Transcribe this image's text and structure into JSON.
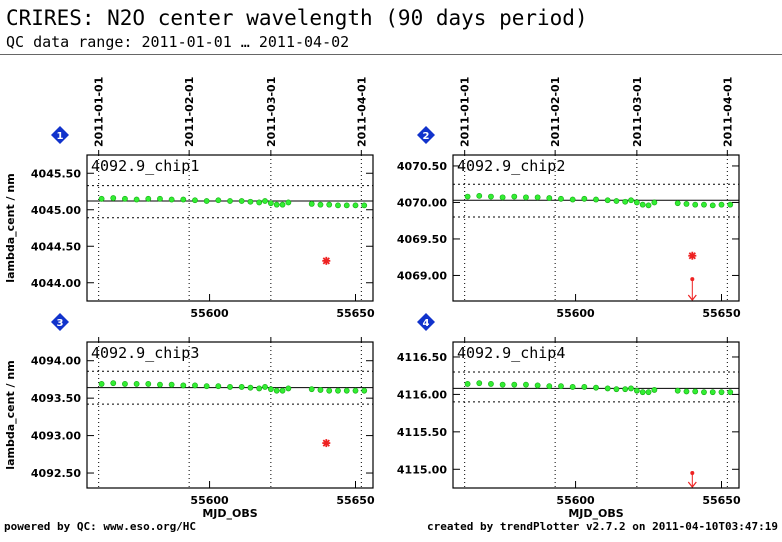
{
  "header": {
    "title": "CRIRES: N2O center wavelength (90 days period)",
    "subtitle": "QC data range: 2011-01-01 … 2011-04-02"
  },
  "footer": {
    "left": "powered by QC: www.eso.org/HC",
    "right": "created by trendPlotter v2.7.2 on 2011-04-10T03:47:19"
  },
  "chart_data": [
    {
      "type": "scatter",
      "badge": "1",
      "panel_label": "4092.9_chip1",
      "ylabel": "lambda_cent / nm",
      "xlabel": "",
      "xlim": [
        55558,
        55656
      ],
      "ylim": [
        4043.75,
        4045.75
      ],
      "yticks": [
        4044.0,
        4044.5,
        4045.0,
        4045.5
      ],
      "ytick_labels": [
        "4044.00",
        "4044.50",
        "4045.00",
        "4045.50"
      ],
      "xticks": [
        55600,
        55650
      ],
      "xtick_labels": [
        "55600",
        "55650"
      ],
      "date_ticks": [
        {
          "x": 55562,
          "label": "2011-01-01"
        },
        {
          "x": 55593,
          "label": "2011-02-01"
        },
        {
          "x": 55621,
          "label": "2011-03-01"
        },
        {
          "x": 55652,
          "label": "2011-04-01"
        }
      ],
      "mean": 4045.12,
      "limits": [
        4044.89,
        4045.33
      ],
      "series": [
        {
          "x": [
            55563,
            55567,
            55571,
            55575,
            55579,
            55583,
            55587,
            55591,
            55595,
            55599,
            55603,
            55607,
            55611,
            55614,
            55617,
            55619,
            55621,
            55623,
            55625,
            55627
          ],
          "y": [
            4045.15,
            4045.16,
            4045.15,
            4045.14,
            4045.15,
            4045.15,
            4045.14,
            4045.14,
            4045.13,
            4045.12,
            4045.13,
            4045.12,
            4045.12,
            4045.11,
            4045.1,
            4045.12,
            4045.09,
            4045.07,
            4045.07,
            4045.1
          ]
        },
        {
          "x": [
            55635,
            55638,
            55641,
            55644,
            55647,
            55650,
            55653
          ],
          "y": [
            4045.08,
            4045.07,
            4045.07,
            4045.06,
            4045.06,
            4045.06,
            4045.06
          ]
        }
      ],
      "outliers": [
        {
          "x": 55640,
          "y": 4044.3
        }
      ],
      "low_outliers": []
    },
    {
      "type": "scatter",
      "badge": "2",
      "panel_label": "4092.9_chip2",
      "ylabel": "",
      "xlabel": "",
      "xlim": [
        55558,
        55656
      ],
      "ylim": [
        4068.65,
        4070.65
      ],
      "yticks": [
        4069.0,
        4069.5,
        4070.0,
        4070.5
      ],
      "ytick_labels": [
        "4069.00",
        "4069.50",
        "4070.00",
        "4070.50"
      ],
      "xticks": [
        55600,
        55650
      ],
      "xtick_labels": [
        "55600",
        "55650"
      ],
      "date_ticks": [
        {
          "x": 55562,
          "label": "2011-01-01"
        },
        {
          "x": 55593,
          "label": "2011-02-01"
        },
        {
          "x": 55621,
          "label": "2011-03-01"
        },
        {
          "x": 55652,
          "label": "2011-04-01"
        }
      ],
      "mean": 4070.03,
      "limits": [
        4069.8,
        4070.25
      ],
      "series": [
        {
          "x": [
            55563,
            55567,
            55571,
            55575,
            55579,
            55583,
            55587,
            55591,
            55595,
            55599,
            55603,
            55607,
            55611,
            55614,
            55617,
            55619,
            55621,
            55623,
            55625,
            55627
          ],
          "y": [
            4070.08,
            4070.09,
            4070.08,
            4070.07,
            4070.08,
            4070.07,
            4070.07,
            4070.06,
            4070.05,
            4070.04,
            4070.05,
            4070.04,
            4070.03,
            4070.02,
            4070.01,
            4070.03,
            4070.0,
            4069.97,
            4069.96,
            4070.0
          ]
        },
        {
          "x": [
            55635,
            55638,
            55641,
            55644,
            55647,
            55650,
            55653
          ],
          "y": [
            4069.99,
            4069.98,
            4069.97,
            4069.97,
            4069.96,
            4069.97,
            4069.97
          ]
        }
      ],
      "outliers": [
        {
          "x": 55640,
          "y": 4069.27
        }
      ],
      "low_outliers": [
        {
          "x": 55640,
          "y": 4068.95
        }
      ]
    },
    {
      "type": "scatter",
      "badge": "3",
      "panel_label": "4092.9_chip3",
      "ylabel": "lambda_cent / nm",
      "xlabel": "MJD_OBS",
      "xlim": [
        55558,
        55656
      ],
      "ylim": [
        4092.3,
        4094.25
      ],
      "yticks": [
        4092.5,
        4093.0,
        4093.5,
        4094.0
      ],
      "ytick_labels": [
        "4092.50",
        "4093.00",
        "4093.50",
        "4094.00"
      ],
      "xticks": [
        55600,
        55650
      ],
      "xtick_labels": [
        "55600",
        "55650"
      ],
      "date_ticks": [
        {
          "x": 55562,
          "label": ""
        },
        {
          "x": 55593,
          "label": ""
        },
        {
          "x": 55621,
          "label": ""
        },
        {
          "x": 55652,
          "label": ""
        }
      ],
      "mean": 4093.64,
      "limits": [
        4093.42,
        4093.86
      ],
      "series": [
        {
          "x": [
            55563,
            55567,
            55571,
            55575,
            55579,
            55583,
            55587,
            55591,
            55595,
            55599,
            55603,
            55607,
            55611,
            55614,
            55617,
            55619,
            55621,
            55623,
            55625,
            55627
          ],
          "y": [
            4093.69,
            4093.7,
            4093.69,
            4093.69,
            4093.69,
            4093.68,
            4093.68,
            4093.67,
            4093.67,
            4093.66,
            4093.66,
            4093.65,
            4093.65,
            4093.64,
            4093.63,
            4093.65,
            4093.62,
            4093.6,
            4093.6,
            4093.63
          ]
        },
        {
          "x": [
            55635,
            55638,
            55641,
            55644,
            55647,
            55650,
            55653
          ],
          "y": [
            4093.62,
            4093.61,
            4093.6,
            4093.6,
            4093.6,
            4093.6,
            4093.6
          ]
        }
      ],
      "outliers": [
        {
          "x": 55640,
          "y": 4092.9
        }
      ],
      "low_outliers": []
    },
    {
      "type": "scatter",
      "badge": "4",
      "panel_label": "4092.9_chip4",
      "ylabel": "",
      "xlabel": "MJD_OBS",
      "xlim": [
        55558,
        55656
      ],
      "ylim": [
        4114.75,
        4116.7
      ],
      "yticks": [
        4115.0,
        4115.5,
        4116.0,
        4116.5
      ],
      "ytick_labels": [
        "4115.00",
        "4115.50",
        "4116.00",
        "4116.50"
      ],
      "xticks": [
        55600,
        55650
      ],
      "xtick_labels": [
        "55600",
        "55650"
      ],
      "date_ticks": [
        {
          "x": 55562,
          "label": ""
        },
        {
          "x": 55593,
          "label": ""
        },
        {
          "x": 55621,
          "label": ""
        },
        {
          "x": 55652,
          "label": ""
        }
      ],
      "mean": 4116.08,
      "limits": [
        4115.9,
        4116.3
      ],
      "series": [
        {
          "x": [
            55563,
            55567,
            55571,
            55575,
            55579,
            55583,
            55587,
            55591,
            55595,
            55599,
            55603,
            55607,
            55611,
            55614,
            55617,
            55619,
            55621,
            55623,
            55625,
            55627
          ],
          "y": [
            4116.14,
            4116.15,
            4116.14,
            4116.13,
            4116.13,
            4116.13,
            4116.12,
            4116.11,
            4116.11,
            4116.1,
            4116.1,
            4116.09,
            4116.08,
            4116.07,
            4116.07,
            4116.08,
            4116.05,
            4116.03,
            4116.03,
            4116.06
          ]
        },
        {
          "x": [
            55635,
            55638,
            55641,
            55644,
            55647,
            55650,
            55653
          ],
          "y": [
            4116.05,
            4116.04,
            4116.04,
            4116.03,
            4116.03,
            4116.03,
            4116.03
          ]
        }
      ],
      "outliers": [],
      "low_outliers": [
        {
          "x": 55640,
          "y": 4114.95
        }
      ]
    }
  ],
  "colors": {
    "points": "#33ee33",
    "points_edge": "#11aa11",
    "outlier": "#ee2222",
    "badge": "#1133cc",
    "line": "#000000"
  }
}
